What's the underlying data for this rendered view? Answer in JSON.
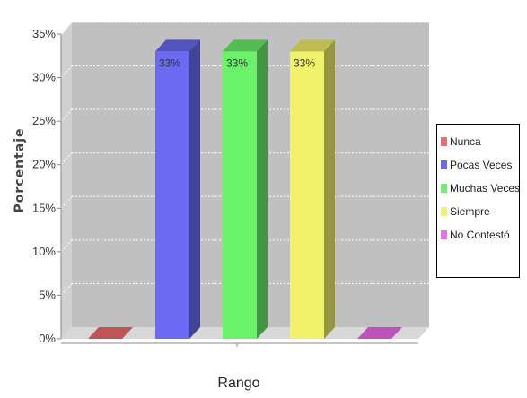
{
  "chart_data": {
    "type": "bar",
    "title": "",
    "xlabel": "Rango",
    "ylabel": "Porcentaje",
    "ylim": [
      0,
      35
    ],
    "yticks": [
      0,
      5,
      10,
      15,
      20,
      25,
      30,
      35
    ],
    "ytick_labels": [
      "0%",
      "5%",
      "10%",
      "15%",
      "20%",
      "25%",
      "30%",
      "35%"
    ],
    "grid": true,
    "legend_position": "right",
    "series": [
      {
        "name": "Nunca",
        "value": 0,
        "color": "#f26d6d",
        "label": ""
      },
      {
        "name": "Pocas Veces",
        "value": 33,
        "color": "#6a6af2",
        "label": "33%"
      },
      {
        "name": "Muchas Veces",
        "value": 33,
        "color": "#6af26a",
        "label": "33%"
      },
      {
        "name": "Siempre",
        "value": 33,
        "color": "#f2f26a",
        "label": "33%"
      },
      {
        "name": "No Contestó",
        "value": 0,
        "color": "#f26af2",
        "label": ""
      }
    ]
  }
}
